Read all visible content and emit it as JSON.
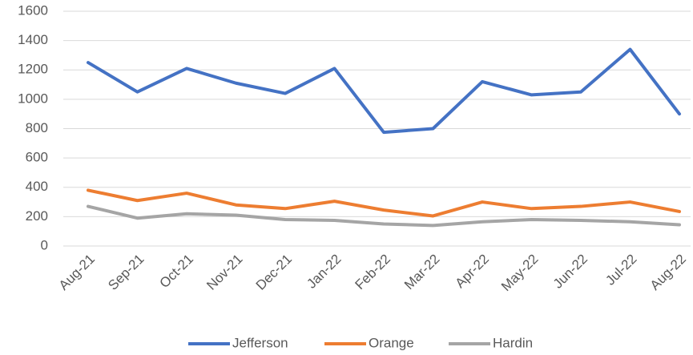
{
  "chart_data": {
    "type": "line",
    "categories": [
      "Aug-21",
      "Sep-21",
      "Oct-21",
      "Nov-21",
      "Dec-21",
      "Jan-22",
      "Feb-22",
      "Mar-22",
      "Apr-22",
      "May-22",
      "Jun-22",
      "Jul-22",
      "Aug-22"
    ],
    "series": [
      {
        "name": "Jefferson",
        "color": "#4472c4",
        "values": [
          1250,
          1050,
          1210,
          1110,
          1040,
          1210,
          775,
          800,
          1120,
          1030,
          1050,
          1340,
          900
        ]
      },
      {
        "name": "Orange",
        "color": "#ed7d31",
        "values": [
          380,
          310,
          360,
          280,
          255,
          305,
          245,
          205,
          300,
          255,
          270,
          300,
          235
        ]
      },
      {
        "name": "Hardin",
        "color": "#a5a5a5",
        "values": [
          270,
          190,
          220,
          210,
          180,
          175,
          150,
          140,
          165,
          180,
          175,
          165,
          145
        ]
      }
    ],
    "ylim": [
      0,
      1600
    ],
    "yticks": [
      0,
      200,
      400,
      600,
      800,
      1000,
      1200,
      1400,
      1600
    ],
    "grid": true,
    "legend": "bottom"
  }
}
